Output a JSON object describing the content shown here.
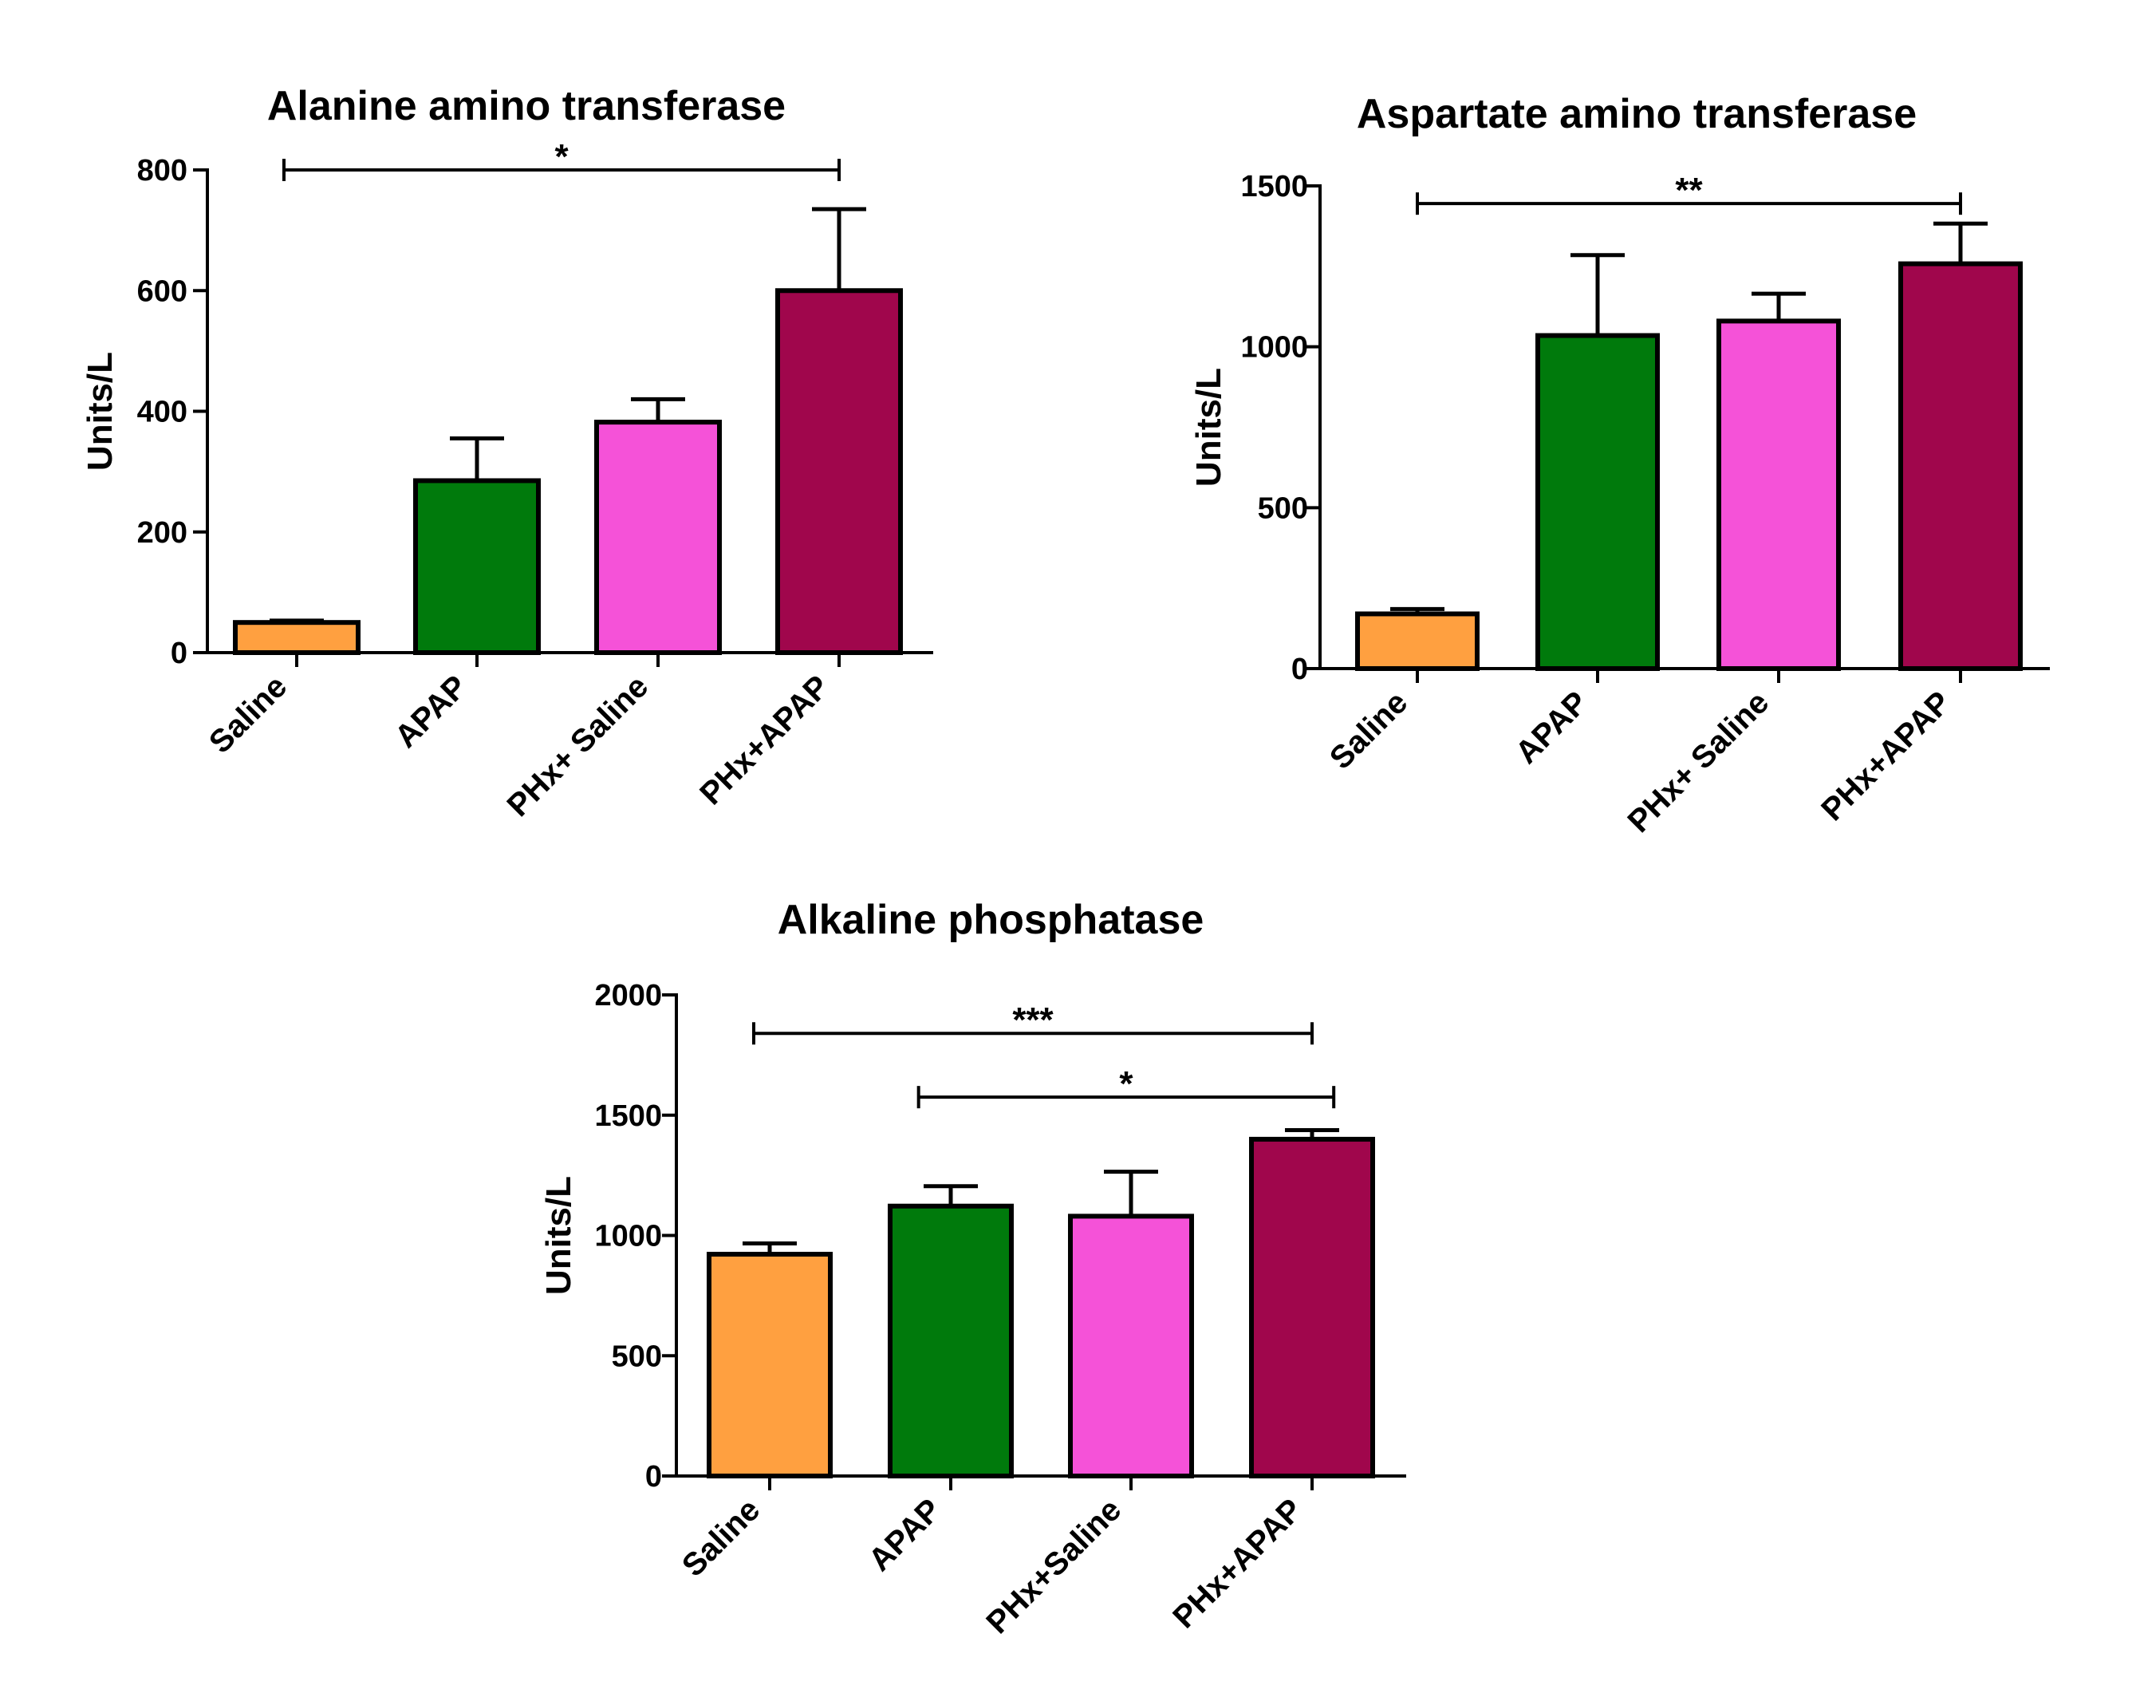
{
  "figure": {
    "background": "#ffffff",
    "axis_color": "#000000"
  },
  "chart_data": [
    {
      "type": "bar",
      "title": "Alanine amino transferase",
      "xlabel": "",
      "ylabel": "Units/L",
      "ylim": [
        0,
        800
      ],
      "yticks": [
        0,
        200,
        400,
        600,
        800
      ],
      "categories": [
        "Saline",
        "APAP",
        "PHx+ Saline",
        "PHx+APAP"
      ],
      "values": [
        50,
        285,
        382,
        600
      ],
      "errors": [
        3,
        70,
        38,
        135
      ],
      "colors": [
        "#FFA040",
        "#007A0C",
        "#F552D8",
        "#A0064C"
      ],
      "significance": [
        {
          "from": 0,
          "to": 3,
          "label": "*",
          "y": 800
        }
      ]
    },
    {
      "type": "bar",
      "title": "Aspartate amino transferase",
      "xlabel": "",
      "ylabel": "Units/L",
      "ylim": [
        0,
        1500
      ],
      "yticks": [
        0,
        500,
        1000,
        1500
      ],
      "categories": [
        "Saline",
        "APAP",
        "PHx+ Saline",
        "PHx+APAP"
      ],
      "values": [
        170,
        1035,
        1080,
        1258
      ],
      "errors": [
        15,
        250,
        85,
        125
      ],
      "colors": [
        "#FFA040",
        "#007A0C",
        "#F552D8",
        "#A0064C"
      ],
      "significance": [
        {
          "from": 0,
          "to": 3,
          "label": "**",
          "y": 1445
        }
      ]
    },
    {
      "type": "bar",
      "title": "Alkaline phosphatase",
      "xlabel": "",
      "ylabel": "Units/L",
      "ylim": [
        0,
        2000
      ],
      "yticks": [
        0,
        500,
        1000,
        1500,
        2000
      ],
      "categories": [
        "Saline",
        "APAP",
        "PHx+Saline",
        "PHx+APAP"
      ],
      "values": [
        922,
        1122,
        1080,
        1400
      ],
      "errors": [
        45,
        83,
        185,
        38
      ],
      "colors": [
        "#FFA040",
        "#007A0C",
        "#F552D8",
        "#A0064C"
      ],
      "significance": [
        {
          "from": 0,
          "to": 3,
          "label": "***",
          "y": 1840
        },
        {
          "from": 1,
          "to": 3.12,
          "label": "*",
          "y": 1575
        }
      ]
    }
  ]
}
